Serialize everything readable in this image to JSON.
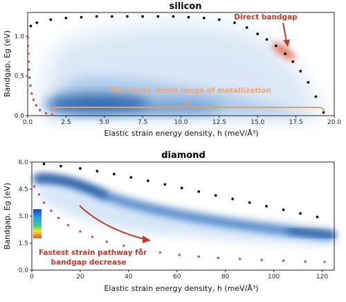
{
  "chart_data": [
    {
      "type": "scatter",
      "title": "silicon",
      "xlabel": "Elastic strain energy density, h (meV/Å³)",
      "ylabel": "Bandgap, Eg (eV)",
      "xlim": [
        0,
        20
      ],
      "ylim": [
        0,
        1.3
      ],
      "xticks": [
        0.0,
        2.5,
        5.0,
        7.5,
        10.0,
        12.5,
        15.0,
        17.5,
        20.0
      ],
      "xtick_labels": [
        "0.0",
        "2.5",
        "5.0",
        "7.5",
        "10.0",
        "12.5",
        "15.0",
        "17.5",
        "20.0"
      ],
      "yticks": [
        0.0,
        0.5,
        1.0
      ],
      "ytick_labels": [
        "0.0",
        "0.5",
        "1.0"
      ],
      "grid": false,
      "series": [
        {
          "color": "#111111",
          "points": [
            [
              0.2,
              1.13
            ],
            [
              0.6,
              1.17
            ],
            [
              1.5,
              1.21
            ],
            [
              2.5,
              1.23
            ],
            [
              3.5,
              1.24
            ],
            [
              4.5,
              1.25
            ],
            [
              5.5,
              1.25
            ],
            [
              6.5,
              1.25
            ],
            [
              7.5,
              1.25
            ],
            [
              8.5,
              1.25
            ],
            [
              9.5,
              1.25
            ],
            [
              10.5,
              1.24
            ],
            [
              11.5,
              1.23
            ],
            [
              12.5,
              1.21
            ],
            [
              13.5,
              1.17
            ],
            [
              14.3,
              1.11
            ],
            [
              15.0,
              1.03
            ],
            [
              15.6,
              0.96
            ],
            [
              16.2,
              0.88
            ],
            [
              16.8,
              0.78
            ],
            [
              17.3,
              0.68
            ],
            [
              17.8,
              0.56
            ],
            [
              18.3,
              0.42
            ],
            [
              18.8,
              0.24
            ],
            [
              19.3,
              0.04
            ]
          ]
        },
        {
          "color": "#c0504d",
          "points": [
            [
              0.02,
              0.98
            ],
            [
              0.03,
              0.88
            ],
            [
              0.04,
              0.78
            ],
            [
              0.06,
              0.68
            ],
            [
              0.08,
              0.58
            ],
            [
              0.12,
              0.48
            ],
            [
              0.18,
              0.38
            ],
            [
              0.26,
              0.28
            ],
            [
              0.38,
              0.2
            ],
            [
              0.55,
              0.13
            ],
            [
              0.8,
              0.07
            ],
            [
              1.2,
              0.03
            ],
            [
              1.6,
              0.01
            ]
          ]
        }
      ],
      "annotations": [
        {
          "text": "Direct bandgap",
          "color": "#c0392b",
          "arrow_tip": [
            16.6,
            0.85
          ]
        },
        {
          "text": "The whole strain range of metallization",
          "color": "#f0a672",
          "brace_range": [
            1.5,
            19.3
          ]
        }
      ]
    },
    {
      "type": "scatter",
      "title": "diamond",
      "xlabel": "Elastic strain energy density, h (meV/Å³)",
      "ylabel": "Bandgap, Eg (eV)",
      "xlim": [
        0,
        125
      ],
      "ylim": [
        0,
        6.0
      ],
      "xticks": [
        0,
        20,
        40,
        60,
        80,
        100,
        120
      ],
      "xtick_labels": [
        "0",
        "20",
        "40",
        "60",
        "80",
        "100",
        "120"
      ],
      "yticks": [
        0.0,
        1.5,
        3.0,
        4.5,
        6.0
      ],
      "ytick_labels": [
        "0.0",
        "1.5",
        "3.0",
        "4.5",
        "6.0"
      ],
      "grid": false,
      "series": [
        {
          "color": "#111111",
          "points": [
            [
              5,
              5.9
            ],
            [
              12,
              5.78
            ],
            [
              20,
              5.65
            ],
            [
              27,
              5.5
            ],
            [
              34,
              5.33
            ],
            [
              41,
              5.15
            ],
            [
              48,
              4.96
            ],
            [
              55,
              4.76
            ],
            [
              62,
              4.56
            ],
            [
              69,
              4.36
            ],
            [
              76,
              4.15
            ],
            [
              83,
              3.95
            ],
            [
              90,
              3.75
            ],
            [
              97,
              3.55
            ],
            [
              104,
              3.35
            ],
            [
              111,
              3.15
            ],
            [
              118,
              2.95
            ]
          ]
        },
        {
          "color": "#c0504d",
          "points": [
            [
              1,
              4.65
            ],
            [
              3,
              4.2
            ],
            [
              5,
              3.75
            ],
            [
              8,
              3.3
            ],
            [
              11,
              2.9
            ],
            [
              15,
              2.5
            ],
            [
              20,
              2.15
            ],
            [
              25,
              1.85
            ],
            [
              31,
              1.58
            ],
            [
              38,
              1.35
            ],
            [
              45,
              1.15
            ],
            [
              53,
              0.98
            ],
            [
              61,
              0.85
            ],
            [
              69,
              0.75
            ],
            [
              77,
              0.68
            ],
            [
              86,
              0.62
            ],
            [
              95,
              0.57
            ],
            [
              104,
              0.52
            ],
            [
              113,
              0.48
            ],
            [
              121,
              0.46
            ]
          ]
        }
      ],
      "annotations": [
        {
          "text": "Fastest strain pathway for bandgap decrease",
          "color": "#c0392b",
          "arrow_tip": [
            48,
            1.5
          ]
        }
      ]
    }
  ]
}
